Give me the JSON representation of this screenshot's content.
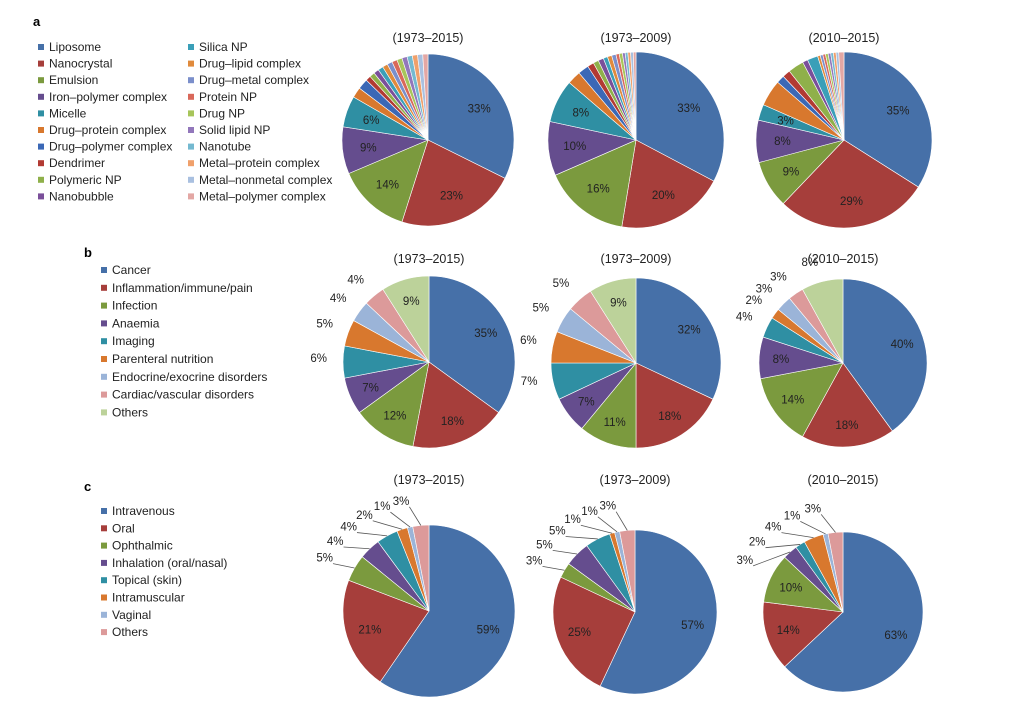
{
  "chart_data": [
    {
      "panel": "a",
      "type": "pie",
      "legend": [
        "Liposome",
        "Nanocrystal",
        "Emulsion",
        "Iron–polymer complex",
        "Micelle",
        "Drug–protein complex",
        "Drug–polymer complex",
        "Dendrimer",
        "Polymeric NP",
        "Nanobubble",
        "Silica NP",
        "Drug–lipid complex",
        "Drug–metal complex",
        "Protein NP",
        "Drug NP",
        "Solid lipid NP",
        "Nanotube",
        "Metal–protein complex",
        "Metal–nonmetal complex",
        "Metal–polymer complex"
      ],
      "colors": [
        "#4670a8",
        "#a63e3b",
        "#7b9a3e",
        "#654d8e",
        "#2f8fa3",
        "#d8782e",
        "#3b68b6",
        "#b23a33",
        "#8fb04a",
        "#7a4f9a",
        "#3a9fb8",
        "#e08a3c",
        "#7b8fcb",
        "#d9685a",
        "#a7c55a",
        "#9277bb",
        "#74b9d0",
        "#f0a06b",
        "#a9c0e0",
        "#e3a7a4"
      ],
      "pies": [
        {
          "title": "(1973–2015)",
          "values": [
            33,
            23,
            14,
            9,
            6,
            2,
            2,
            1,
            1,
            1,
            1,
            1,
            1,
            1,
            1,
            1,
            1,
            1,
            1,
            1
          ],
          "labels": [
            "33%",
            "23%",
            "14%",
            "9%",
            "6%",
            "",
            "",
            "",
            "",
            "",
            "",
            "",
            "",
            "",
            "",
            "",
            "",
            "",
            "",
            ""
          ]
        },
        {
          "title": "(1973–2009)",
          "values": [
            33,
            20,
            16,
            10,
            8,
            2.5,
            2,
            1.2,
            1,
            1,
            0.8,
            0.8,
            0.8,
            0.6,
            0.6,
            0.5,
            0.5,
            0.5,
            0.5,
            0.5
          ],
          "labels": [
            "33%",
            "20%",
            "16%",
            "10%",
            "8%",
            "",
            "",
            "",
            "",
            "",
            "",
            "",
            "",
            "",
            "",
            "",
            "",
            "",
            "",
            ""
          ]
        },
        {
          "title": "(2010–2015)",
          "values": [
            35,
            29,
            9,
            8,
            3,
            5,
            1.5,
            1.5,
            3,
            1,
            2,
            0.5,
            0.5,
            0.5,
            0.5,
            0.5,
            0.5,
            0.5,
            0.5,
            1
          ],
          "labels": [
            "35%",
            "29%",
            "9%",
            "8%",
            "3%",
            "",
            "",
            "",
            "",
            "",
            "",
            "",
            "",
            "",
            "",
            "",
            "",
            "",
            "",
            ""
          ]
        }
      ]
    },
    {
      "panel": "b",
      "type": "pie",
      "legend": [
        "Cancer",
        "Inflammation/immune/pain",
        "Infection",
        "Anaemia",
        "Imaging",
        "Parenteral nutrition",
        "Endocrine/exocrine disorders",
        "Cardiac/vascular disorders",
        "Others"
      ],
      "colors": [
        "#4670a8",
        "#a63e3b",
        "#7b9a3e",
        "#654d8e",
        "#2f8fa3",
        "#d8782e",
        "#9bb4d8",
        "#dc9a9a",
        "#bcd29a"
      ],
      "pies": [
        {
          "title": "(1973–2015)",
          "values": [
            35,
            18,
            12,
            7,
            6,
            5,
            4,
            4,
            9
          ],
          "labels": [
            "35%",
            "18%",
            "12%",
            "7%",
            "6%",
            "5%",
            "4%",
            "4%",
            "9%"
          ]
        },
        {
          "title": "(1973–2009)",
          "values": [
            32,
            18,
            11,
            7,
            7,
            6,
            5,
            5,
            9
          ],
          "labels": [
            "32%",
            "18%",
            "11%",
            "7%",
            "7%",
            "6%",
            "5%",
            "5%",
            "9%"
          ]
        },
        {
          "title": "(2010–2015)",
          "values": [
            40,
            18,
            14,
            8,
            4,
            2,
            3,
            3,
            8
          ],
          "labels": [
            "40%",
            "18%",
            "14%",
            "8%",
            "4%",
            "2%",
            "3%",
            "3%",
            "8%"
          ]
        }
      ]
    },
    {
      "panel": "c",
      "type": "pie",
      "legend": [
        "Intravenous",
        "Oral",
        "Ophthalmic",
        "Inhalation (oral/nasal)",
        "Topical (skin)",
        "Intramuscular",
        "Vaginal",
        "Others"
      ],
      "colors": [
        "#4670a8",
        "#a63e3b",
        "#7b9a3e",
        "#654d8e",
        "#2f8fa3",
        "#d8782e",
        "#9bb4d8",
        "#dc9a9a"
      ],
      "pies": [
        {
          "title": "(1973–2015)",
          "values": [
            59,
            21,
            5,
            4,
            4,
            2,
            1,
            3
          ],
          "labels": [
            "59%",
            "21%",
            "5%",
            "4%",
            "4%",
            "2%",
            "1%",
            "3%"
          ]
        },
        {
          "title": "(1973–2009)",
          "values": [
            57,
            25,
            3,
            5,
            5,
            1,
            1,
            3
          ],
          "labels": [
            "57%",
            "25%",
            "3%",
            "5%",
            "5%",
            "1%",
            "1%",
            "3%"
          ]
        },
        {
          "title": "(2010–2015)",
          "values": [
            63,
            14,
            10,
            3,
            2,
            4,
            1,
            3
          ],
          "labels": [
            "63%",
            "14%",
            "10%",
            "3%",
            "2%",
            "4%",
            "1%",
            "3%"
          ]
        }
      ]
    }
  ]
}
